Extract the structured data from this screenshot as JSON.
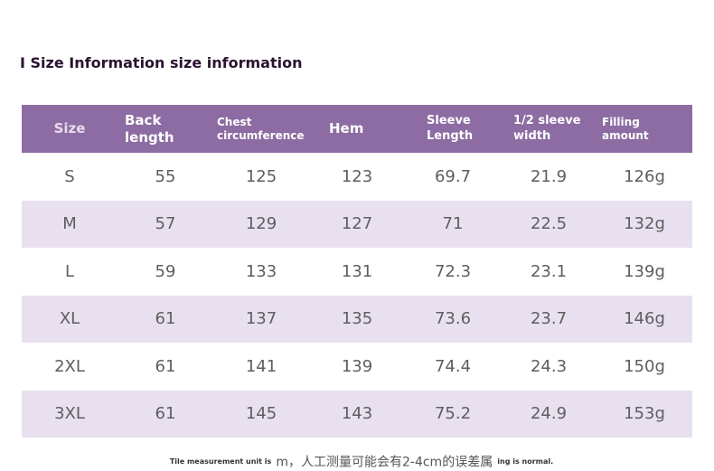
{
  "title": "I Size Information size information",
  "headers": [
    "Size",
    "Back length",
    "Chest circumference",
    "Hem",
    "Sleeve Length",
    "1/2 sleeve width",
    "Filling amount"
  ],
  "rows": [
    [
      "S",
      "55",
      "125",
      "123",
      "69.7",
      "21.9",
      "126g"
    ],
    [
      "M",
      "57",
      "129",
      "127",
      "71",
      "22.5",
      "132g"
    ],
    [
      "L",
      "59",
      "133",
      "131",
      "72.3",
      "23.1",
      "139g"
    ],
    [
      "XL",
      "61",
      "137",
      "135",
      "73.6",
      "23.7",
      "146g"
    ],
    [
      "2XL",
      "61",
      "141",
      "139",
      "74.4",
      "24.3",
      "150g"
    ],
    [
      "3XL",
      "61",
      "145",
      "143",
      "75.2",
      "24.9",
      "153g"
    ]
  ],
  "colors": {
    "header_bg": "#8c6ca2",
    "stripe_bg": "#e8e0ef",
    "title_color": "#2a1230"
  },
  "footnote": {
    "left": "Tile measurement unit is",
    "middle": "m，人工测量可能会有2-4cm的误差属",
    "right": "ing is normal."
  }
}
